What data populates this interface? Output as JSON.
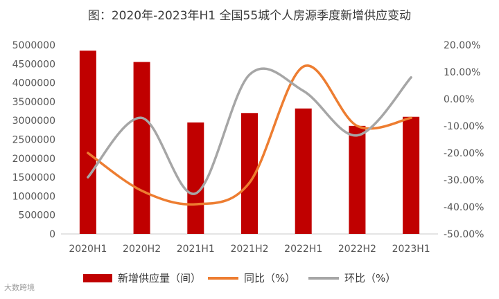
{
  "chart_data": {
    "type": "bar",
    "title": "图：2020年-2023年H1 全国55城个人房源季度新增供应变动",
    "categories": [
      "2020H1",
      "2020H2",
      "2021H1",
      "2021H2",
      "2022H1",
      "2022H2",
      "2023H1"
    ],
    "series": [
      {
        "name": "新增供应量（间）",
        "type": "bar",
        "axis": "left",
        "color": "#C00000",
        "values": [
          4850000,
          4550000,
          2950000,
          3200000,
          3320000,
          2860000,
          3100000
        ]
      },
      {
        "name": "同比（%）",
        "type": "line",
        "axis": "right",
        "color": "#ED7D31",
        "values": [
          -20.0,
          -34.0,
          -39.0,
          -31.0,
          12.0,
          -10.0,
          -7.0
        ]
      },
      {
        "name": "环比（%）",
        "type": "line",
        "axis": "right",
        "color": "#A6A6A6",
        "values": [
          -29.0,
          -7.0,
          -35.0,
          9.0,
          3.0,
          -13.5,
          8.0
        ]
      }
    ],
    "y_left": {
      "min": 0,
      "max": 5000000,
      "step": 500000
    },
    "y_right": {
      "min": -50,
      "max": 20,
      "step": 10,
      "unit": "%"
    },
    "legend_position": "bottom",
    "grid": false
  },
  "watermark": {
    "text": "大数跨境"
  }
}
